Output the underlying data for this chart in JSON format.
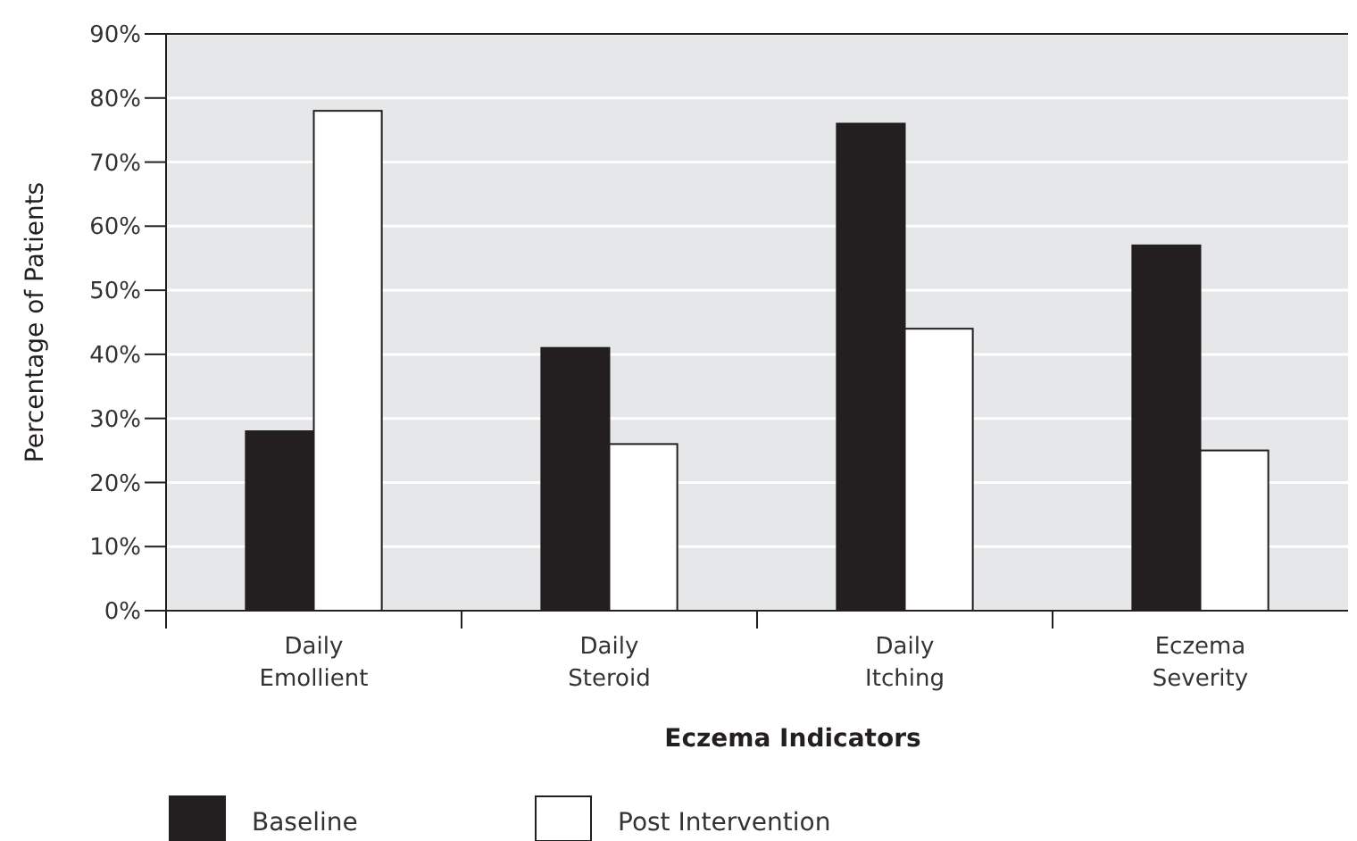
{
  "chart_data": {
    "type": "bar",
    "xlabel": "Eczema Indicators",
    "ylabel": "Percentage of Patients",
    "categories": [
      "Daily Emollient",
      "Daily Steroid",
      "Daily Itching",
      "Eczema Severity"
    ],
    "series": [
      {
        "name": "Baseline",
        "color": "#231f20",
        "values": [
          28,
          41,
          76,
          57
        ]
      },
      {
        "name": "Post Intervention",
        "color": "#ffffff",
        "values": [
          78,
          26,
          44,
          25
        ]
      }
    ],
    "ylim": [
      0,
      90
    ],
    "yticks": [
      {
        "value": 0,
        "label": "0%"
      },
      {
        "value": 10,
        "label": "10%"
      },
      {
        "value": 20,
        "label": "20%"
      },
      {
        "value": 30,
        "label": "30%"
      },
      {
        "value": 40,
        "label": "40%"
      },
      {
        "value": 50,
        "label": "50%"
      },
      {
        "value": 60,
        "label": "60%"
      },
      {
        "value": 70,
        "label": "70%"
      },
      {
        "value": 80,
        "label": "80%"
      },
      {
        "value": 90,
        "label": "90%"
      }
    ],
    "grid": "y",
    "legend": "bottom left"
  }
}
